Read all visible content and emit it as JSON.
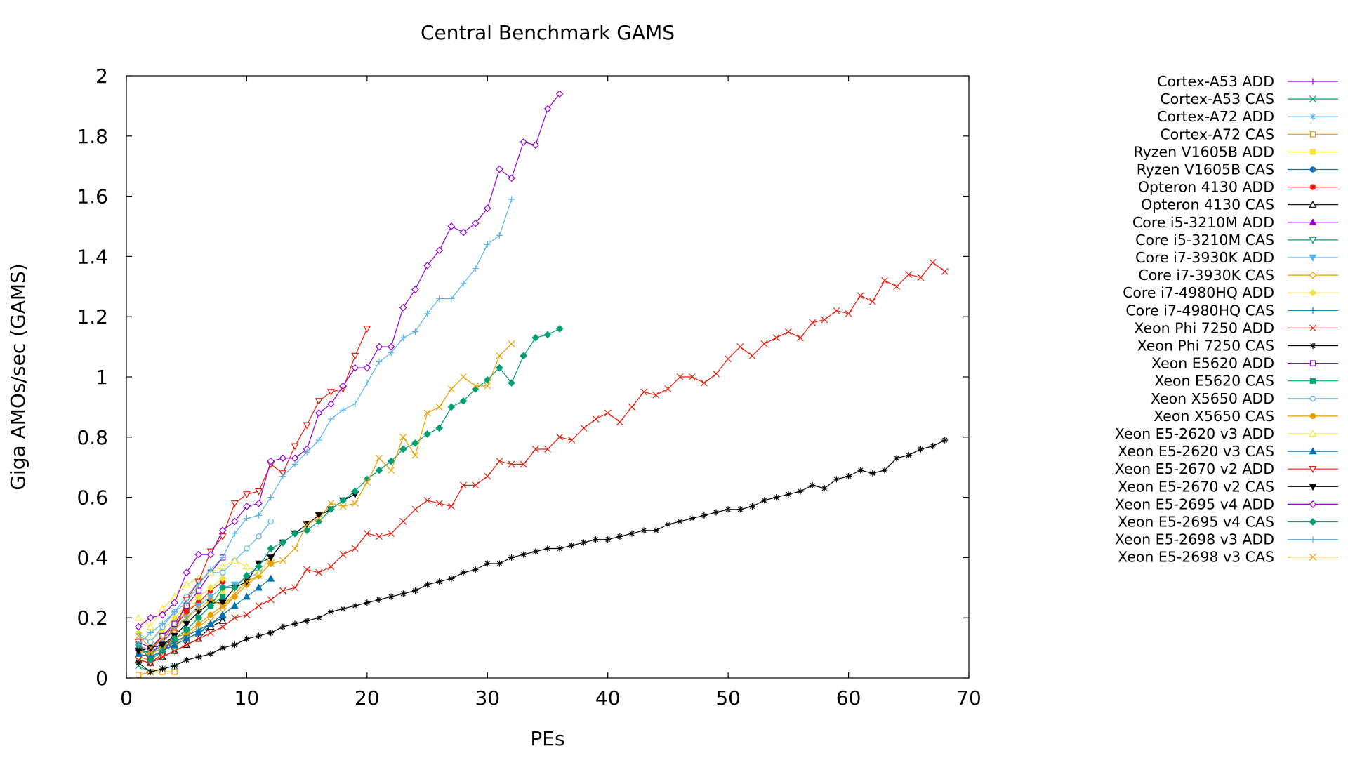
{
  "chart_data": {
    "type": "line",
    "title": "Central Benchmark GAMS",
    "xlabel": "PEs",
    "ylabel": "Giga AMOs/sec (GAMS)",
    "xlim": [
      0,
      70
    ],
    "ylim": [
      0,
      2
    ],
    "x_ticks": [
      "0",
      "10",
      "20",
      "30",
      "40",
      "50",
      "60",
      "70"
    ],
    "y_ticks": [
      "0",
      "0.2",
      "0.4",
      "0.6",
      "0.8",
      "1",
      "1.2",
      "1.4",
      "1.6",
      "1.8",
      "2"
    ],
    "grid": false,
    "legend_position": "right",
    "series": [
      {
        "name": "Cortex-A53 ADD",
        "color": "#9400d3",
        "marker": "plus",
        "x": [
          1,
          2,
          3,
          4
        ],
        "y": [
          0.07,
          0.06,
          0.09,
          0.12
        ]
      },
      {
        "name": "Cortex-A53 CAS",
        "color": "#009e73",
        "marker": "cross",
        "x": [
          1,
          2,
          3,
          4
        ],
        "y": [
          0.04,
          0.02,
          0.03,
          0.04
        ]
      },
      {
        "name": "Cortex-A72 ADD",
        "color": "#56b4e9",
        "marker": "star",
        "x": [
          1,
          2,
          3,
          4
        ],
        "y": [
          0.09,
          0.08,
          0.12,
          0.16
        ]
      },
      {
        "name": "Cortex-A72 CAS",
        "color": "#e69f00",
        "marker": "square",
        "x": [
          1,
          2,
          3,
          4
        ],
        "y": [
          0.01,
          0.02,
          0.02,
          0.02
        ]
      },
      {
        "name": "Ryzen V1605B ADD",
        "color": "#f0e442",
        "marker": "filled-square",
        "x": [
          1,
          2,
          3,
          4,
          5,
          6,
          7,
          8
        ],
        "y": [
          0.12,
          0.1,
          0.14,
          0.18,
          0.22,
          0.26,
          0.24,
          0.29
        ]
      },
      {
        "name": "Ryzen V1605B CAS",
        "color": "#0072b2",
        "marker": "filled-circle",
        "x": [
          1,
          2,
          3,
          4,
          5,
          6,
          7,
          8
        ],
        "y": [
          0.08,
          0.07,
          0.09,
          0.11,
          0.13,
          0.15,
          0.17,
          0.19
        ]
      },
      {
        "name": "Opteron 4130 ADD",
        "color": "#e51e10",
        "marker": "filled-circle",
        "x": [
          1,
          2,
          3,
          4,
          5,
          6,
          7,
          8
        ],
        "y": [
          0.11,
          0.09,
          0.14,
          0.17,
          0.22,
          0.25,
          0.29,
          0.32
        ]
      },
      {
        "name": "Opteron 4130 CAS",
        "color": "#000000",
        "marker": "triangle",
        "x": [
          1,
          2,
          3,
          4,
          5,
          6,
          7,
          8
        ],
        "y": [
          0.06,
          0.05,
          0.07,
          0.09,
          0.11,
          0.13,
          0.17,
          0.19
        ]
      },
      {
        "name": "Core i5-3210M ADD",
        "color": "#9400d3",
        "marker": "filled-triangle",
        "x": [
          1,
          2,
          3,
          4
        ],
        "y": [
          0.1,
          0.08,
          0.12,
          0.16
        ]
      },
      {
        "name": "Core i5-3210M CAS",
        "color": "#009e73",
        "marker": "inv-triangle",
        "x": [
          1,
          2,
          3,
          4
        ],
        "y": [
          0.06,
          0.05,
          0.07,
          0.09
        ]
      },
      {
        "name": "Core i7-3930K ADD",
        "color": "#56b4e9",
        "marker": "filled-inv-triangle",
        "x": [
          1,
          2,
          3,
          4,
          5,
          6,
          7,
          8,
          9,
          10,
          11,
          12
        ],
        "y": [
          0.11,
          0.09,
          0.13,
          0.17,
          0.2,
          0.24,
          0.27,
          0.3,
          0.31,
          0.33,
          0.35,
          0.4
        ]
      },
      {
        "name": "Core i7-3930K CAS",
        "color": "#e69f00",
        "marker": "diamond",
        "x": [
          1,
          2,
          3,
          4,
          5,
          6,
          7,
          8,
          9,
          10,
          11,
          12
        ],
        "y": [
          0.07,
          0.06,
          0.09,
          0.11,
          0.14,
          0.17,
          0.2,
          0.23,
          0.27,
          0.31,
          0.34,
          0.38
        ]
      },
      {
        "name": "Core i7-4980HQ ADD",
        "color": "#f0e442",
        "marker": "filled-diamond",
        "x": [
          1,
          2,
          3,
          4,
          5,
          6,
          7,
          8
        ],
        "y": [
          0.15,
          0.12,
          0.16,
          0.2,
          0.24,
          0.27,
          0.3,
          0.33
        ]
      },
      {
        "name": "Core i7-4980HQ CAS",
        "color": "#0072b2",
        "marker": "plus",
        "x": [
          1,
          2,
          3,
          4,
          5,
          6,
          7,
          8
        ],
        "y": [
          0.1,
          0.08,
          0.1,
          0.12,
          0.14,
          0.16,
          0.18,
          0.2
        ]
      },
      {
        "name": "Xeon Phi 7250 ADD",
        "color": "#e51e10",
        "marker": "cross",
        "x": [
          1,
          2,
          3,
          4,
          5,
          6,
          7,
          8,
          9,
          10,
          11,
          12,
          13,
          14,
          15,
          16,
          17,
          18,
          19,
          20,
          21,
          22,
          23,
          24,
          25,
          26,
          27,
          28,
          29,
          30,
          31,
          32,
          33,
          34,
          35,
          36,
          37,
          38,
          39,
          40,
          41,
          42,
          43,
          44,
          45,
          46,
          47,
          48,
          49,
          50,
          51,
          52,
          53,
          54,
          55,
          56,
          57,
          58,
          59,
          60,
          61,
          62,
          63,
          64,
          65,
          66,
          67,
          68
        ],
        "y": [
          0.06,
          0.05,
          0.07,
          0.09,
          0.11,
          0.13,
          0.15,
          0.17,
          0.2,
          0.21,
          0.24,
          0.26,
          0.29,
          0.3,
          0.36,
          0.35,
          0.37,
          0.41,
          0.43,
          0.48,
          0.47,
          0.48,
          0.52,
          0.56,
          0.59,
          0.58,
          0.57,
          0.64,
          0.64,
          0.67,
          0.72,
          0.71,
          0.71,
          0.76,
          0.76,
          0.8,
          0.79,
          0.83,
          0.86,
          0.88,
          0.85,
          0.9,
          0.95,
          0.94,
          0.96,
          1.0,
          1.0,
          0.98,
          1.01,
          1.06,
          1.1,
          1.07,
          1.11,
          1.13,
          1.15,
          1.13,
          1.18,
          1.19,
          1.22,
          1.21,
          1.27,
          1.25,
          1.32,
          1.3,
          1.34,
          1.33,
          1.38,
          1.35
        ]
      },
      {
        "name": "Xeon Phi 7250 CAS",
        "color": "#000000",
        "marker": "star",
        "x": [
          1,
          2,
          3,
          4,
          5,
          6,
          7,
          8,
          9,
          10,
          11,
          12,
          13,
          14,
          15,
          16,
          17,
          18,
          19,
          20,
          21,
          22,
          23,
          24,
          25,
          26,
          27,
          28,
          29,
          30,
          31,
          32,
          33,
          34,
          35,
          36,
          37,
          38,
          39,
          40,
          41,
          42,
          43,
          44,
          45,
          46,
          47,
          48,
          49,
          50,
          51,
          52,
          53,
          54,
          55,
          56,
          57,
          58,
          59,
          60,
          61,
          62,
          63,
          64,
          65,
          66,
          67,
          68
        ],
        "y": [
          0.05,
          0.02,
          0.03,
          0.04,
          0.06,
          0.07,
          0.08,
          0.1,
          0.11,
          0.13,
          0.14,
          0.15,
          0.17,
          0.18,
          0.19,
          0.2,
          0.22,
          0.23,
          0.24,
          0.25,
          0.26,
          0.27,
          0.28,
          0.29,
          0.31,
          0.32,
          0.33,
          0.35,
          0.36,
          0.38,
          0.38,
          0.4,
          0.41,
          0.42,
          0.43,
          0.43,
          0.44,
          0.45,
          0.46,
          0.46,
          0.47,
          0.48,
          0.49,
          0.49,
          0.51,
          0.52,
          0.53,
          0.54,
          0.55,
          0.56,
          0.56,
          0.57,
          0.59,
          0.6,
          0.61,
          0.62,
          0.64,
          0.63,
          0.66,
          0.67,
          0.69,
          0.68,
          0.69,
          0.73,
          0.74,
          0.76,
          0.77,
          0.79
        ]
      },
      {
        "name": "Xeon E5620 ADD",
        "color": "#9400d3",
        "marker": "square",
        "x": [
          1,
          2,
          3,
          4,
          5,
          6,
          7,
          8
        ],
        "y": [
          0.12,
          0.1,
          0.14,
          0.18,
          0.24,
          0.29,
          0.35,
          0.4
        ]
      },
      {
        "name": "Xeon E5620 CAS",
        "color": "#009e73",
        "marker": "filled-square",
        "x": [
          1,
          2,
          3,
          4,
          5,
          6,
          7,
          8
        ],
        "y": [
          0.09,
          0.08,
          0.11,
          0.13,
          0.16,
          0.2,
          0.24,
          0.27
        ]
      },
      {
        "name": "Xeon X5650 ADD",
        "color": "#56b4e9",
        "marker": "circle",
        "x": [
          1,
          2,
          3,
          4,
          5,
          6,
          7,
          8,
          9,
          10,
          11,
          12
        ],
        "y": [
          0.14,
          0.12,
          0.17,
          0.22,
          0.27,
          0.32,
          0.35,
          0.35,
          0.39,
          0.43,
          0.47,
          0.52
        ]
      },
      {
        "name": "Xeon X5650 CAS",
        "color": "#e69f00",
        "marker": "filled-circle",
        "x": [
          1,
          2,
          3,
          4,
          5,
          6,
          7,
          8,
          9,
          10,
          11,
          12
        ],
        "y": [
          0.09,
          0.08,
          0.1,
          0.13,
          0.15,
          0.18,
          0.21,
          0.24,
          0.27,
          0.31,
          0.34,
          0.38
        ]
      },
      {
        "name": "Xeon E5-2620 v3 ADD",
        "color": "#f0e442",
        "marker": "triangle",
        "x": [
          1,
          2,
          3,
          4,
          5,
          6,
          7,
          8,
          9,
          10,
          11,
          12
        ],
        "y": [
          0.2,
          0.17,
          0.23,
          0.27,
          0.31,
          0.33,
          0.35,
          0.37,
          0.39,
          0.37,
          0.35,
          0.4
        ]
      },
      {
        "name": "Xeon E5-2620 v3 CAS",
        "color": "#0072b2",
        "marker": "filled-triangle",
        "x": [
          1,
          2,
          3,
          4,
          5,
          6,
          7,
          8,
          9,
          10,
          11,
          12
        ],
        "y": [
          0.08,
          0.07,
          0.09,
          0.11,
          0.13,
          0.15,
          0.18,
          0.21,
          0.24,
          0.27,
          0.3,
          0.33
        ]
      },
      {
        "name": "Xeon E5-2670 v2 ADD",
        "color": "#e51e10",
        "marker": "inv-triangle",
        "x": [
          1,
          2,
          3,
          4,
          5,
          6,
          7,
          8,
          9,
          10,
          11,
          12,
          13,
          14,
          15,
          16,
          17,
          18,
          19,
          20
        ],
        "y": [
          0.12,
          0.05,
          0.08,
          0.15,
          0.26,
          0.32,
          0.42,
          0.47,
          0.58,
          0.61,
          0.62,
          0.71,
          0.68,
          0.77,
          0.84,
          0.92,
          0.95,
          0.96,
          1.07,
          1.16
        ]
      },
      {
        "name": "Xeon E5-2670 v2 CAS",
        "color": "#000000",
        "marker": "filled-inv-triangle",
        "x": [
          1,
          2,
          3,
          4,
          5,
          6,
          7,
          8,
          9,
          10,
          11,
          12,
          13,
          14,
          15,
          16,
          17,
          18,
          19
        ],
        "y": [
          0.09,
          0.1,
          0.11,
          0.14,
          0.18,
          0.22,
          0.25,
          0.25,
          0.3,
          0.32,
          0.38,
          0.4,
          0.45,
          0.48,
          0.51,
          0.54,
          0.56,
          0.59,
          0.61
        ]
      },
      {
        "name": "Xeon E5-2695 v4 ADD",
        "color": "#9400d3",
        "marker": "diamond",
        "x": [
          1,
          2,
          3,
          4,
          5,
          6,
          7,
          8,
          9,
          10,
          11,
          12,
          13,
          14,
          15,
          16,
          17,
          18,
          19,
          20,
          21,
          22,
          23,
          24,
          25,
          26,
          27,
          28,
          29,
          30,
          31,
          32,
          33,
          34,
          35,
          36
        ],
        "y": [
          0.17,
          0.2,
          0.21,
          0.25,
          0.35,
          0.41,
          0.41,
          0.49,
          0.52,
          0.57,
          0.58,
          0.72,
          0.73,
          0.73,
          0.76,
          0.88,
          0.91,
          0.97,
          1.03,
          1.03,
          1.1,
          1.1,
          1.23,
          1.29,
          1.37,
          1.42,
          1.5,
          1.48,
          1.51,
          1.56,
          1.69,
          1.66,
          1.78,
          1.77,
          1.89,
          1.94
        ]
      },
      {
        "name": "Xeon E5-2695 v4 CAS",
        "color": "#009e73",
        "marker": "filled-diamond",
        "x": [
          1,
          2,
          3,
          4,
          5,
          6,
          7,
          8,
          9,
          10,
          11,
          12,
          13,
          14,
          15,
          16,
          17,
          18,
          19,
          20,
          21,
          22,
          23,
          24,
          25,
          26,
          27,
          28,
          29,
          30,
          31,
          32,
          33,
          34,
          35,
          36
        ],
        "y": [
          0.11,
          0.06,
          0.09,
          0.13,
          0.16,
          0.2,
          0.24,
          0.3,
          0.3,
          0.34,
          0.37,
          0.43,
          0.45,
          0.48,
          0.49,
          0.52,
          0.56,
          0.59,
          0.62,
          0.66,
          0.69,
          0.72,
          0.76,
          0.78,
          0.81,
          0.83,
          0.9,
          0.92,
          0.96,
          0.99,
          1.03,
          0.98,
          1.07,
          1.13,
          1.14,
          1.16
        ]
      },
      {
        "name": "Xeon E5-2698 v3 ADD",
        "color": "#56b4e9",
        "marker": "plus",
        "x": [
          1,
          2,
          3,
          4,
          5,
          6,
          7,
          8,
          9,
          10,
          11,
          12,
          13,
          14,
          15,
          16,
          17,
          18,
          19,
          20,
          21,
          22,
          23,
          24,
          25,
          26,
          27,
          28,
          29,
          30,
          31,
          32
        ],
        "y": [
          0.11,
          0.15,
          0.18,
          0.22,
          0.25,
          0.31,
          0.36,
          0.4,
          0.48,
          0.53,
          0.54,
          0.6,
          0.67,
          0.71,
          0.75,
          0.79,
          0.86,
          0.89,
          0.91,
          0.98,
          1.05,
          1.08,
          1.13,
          1.15,
          1.21,
          1.26,
          1.26,
          1.31,
          1.36,
          1.44,
          1.47,
          1.59
        ]
      },
      {
        "name": "Xeon E5-2698 v3 CAS",
        "color": "#e69f00",
        "marker": "cross",
        "x": [
          1,
          2,
          3,
          4,
          5,
          6,
          7,
          8,
          9,
          10,
          11,
          12,
          13,
          14,
          15,
          16,
          17,
          18,
          19,
          20,
          21,
          22,
          23,
          24,
          25,
          26,
          27,
          28,
          29,
          30,
          31,
          32
        ],
        "y": [
          0.14,
          0.1,
          0.13,
          0.16,
          0.2,
          0.23,
          0.26,
          0.24,
          0.28,
          0.32,
          0.34,
          0.38,
          0.39,
          0.43,
          0.51,
          0.53,
          0.58,
          0.57,
          0.58,
          0.65,
          0.73,
          0.69,
          0.8,
          0.74,
          0.88,
          0.9,
          0.96,
          1.0,
          0.97,
          0.97,
          1.07,
          1.11
        ]
      }
    ]
  }
}
